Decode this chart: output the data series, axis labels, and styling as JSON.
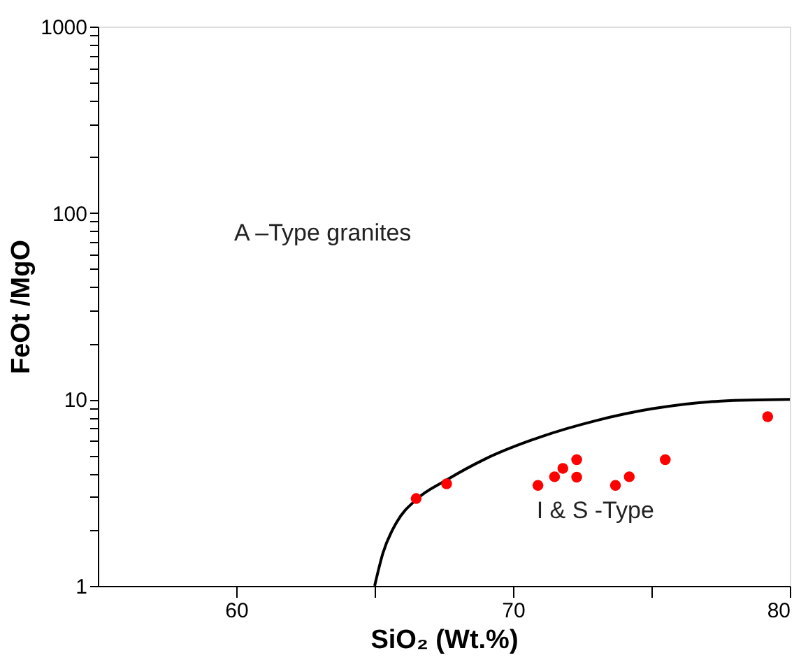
{
  "chart_data": {
    "type": "scatter",
    "xlabel": "SiO₂ (Wt.%)",
    "ylabel": "FeOt /MgO",
    "xlim": [
      55,
      80
    ],
    "xticks": [
      60,
      {
        "value": 65,
        "label": null
      },
      70,
      {
        "value": 75,
        "label": null
      },
      80
    ],
    "ylim": [
      1,
      1000
    ],
    "log": "y",
    "yticks": [
      1,
      {
        "value": 2,
        "label": null
      },
      {
        "value": 3,
        "label": null
      },
      {
        "value": 4,
        "label": null
      },
      {
        "value": 5,
        "label": null
      },
      {
        "value": 6,
        "label": null
      },
      {
        "value": 7,
        "label": null
      },
      {
        "value": 8,
        "label": null
      },
      {
        "value": 9,
        "label": null
      },
      10,
      {
        "value": 20,
        "label": null
      },
      {
        "value": 30,
        "label": null
      },
      {
        "value": 40,
        "label": null
      },
      {
        "value": 50,
        "label": null
      },
      {
        "value": 60,
        "label": null
      },
      {
        "value": 70,
        "label": null
      },
      {
        "value": 80,
        "label": null
      },
      {
        "value": 90,
        "label": null
      },
      100,
      {
        "value": 200,
        "label": null
      },
      {
        "value": 300,
        "label": null
      },
      {
        "value": 400,
        "label": null
      },
      {
        "value": 500,
        "label": null
      },
      {
        "value": 600,
        "label": null
      },
      {
        "value": 700,
        "label": null
      },
      {
        "value": 800,
        "label": null
      },
      {
        "value": 900,
        "label": null
      },
      1000
    ],
    "grid": false,
    "series": [
      {
        "type": "line",
        "color": "#000000",
        "marker": "none",
        "line_style": "solid",
        "x": [
          65.0,
          65.3,
          65.8,
          66.5,
          67.6,
          69.0,
          71.0,
          73.0,
          75.0,
          77.5,
          80.0
        ],
        "values": [
          1.0,
          1.5,
          2.2,
          2.9,
          3.7,
          4.8,
          6.3,
          7.7,
          8.9,
          9.8,
          10.0
        ]
      },
      {
        "color": "#ff0000",
        "marker": "circle",
        "x": [
          66.5,
          67.6,
          70.9,
          71.5,
          71.8,
          72.3,
          72.3,
          73.7,
          74.2,
          75.5,
          79.2
        ],
        "values": [
          2.94,
          3.53,
          3.46,
          3.85,
          4.27,
          4.75,
          3.83,
          3.46,
          3.85,
          4.75,
          8.08
        ]
      }
    ],
    "annotations": [
      "A –Type granites",
      "I & S -Type"
    ]
  }
}
